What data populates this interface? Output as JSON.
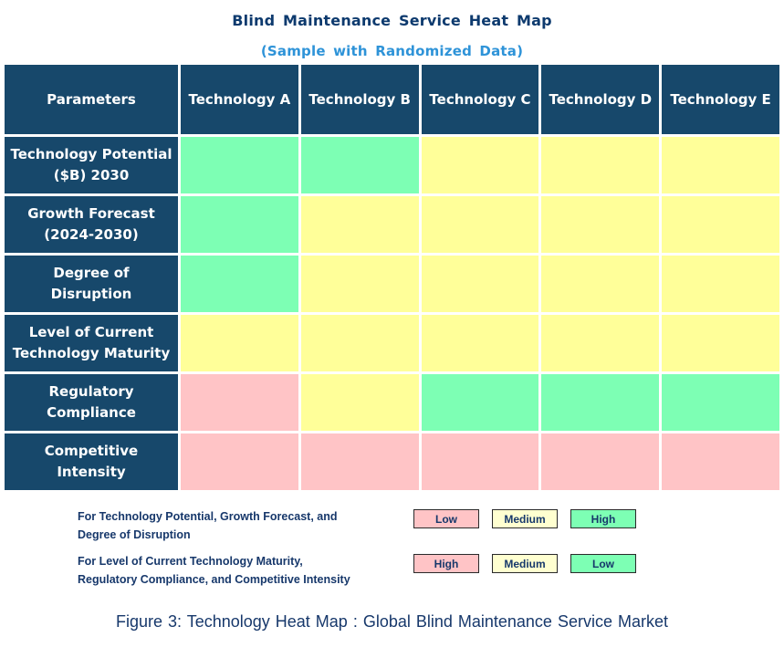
{
  "title": "Blind Maintenance Service Heat Map",
  "subtitle": "(Sample with Randomized Data)",
  "caption": "Figure 3: Technology Heat Map :  Global Blind Maintenance Service Market",
  "colors": {
    "navy": "#17486B",
    "title_navy": "#0D3A6E",
    "subtitle_blue": "#2E93D8",
    "text_navy": "#17386B",
    "green": "#7DFFB4",
    "yellow": "#FFFF99",
    "pink": "#FFC4C6",
    "legend_yellow": "#FFFFD0"
  },
  "table": {
    "columns": [
      "Parameters",
      "Technology A",
      "Technology B",
      "Technology C",
      "Technology D",
      "Technology E"
    ],
    "rows": [
      {
        "label": "Technology Potential\n($B) 2030",
        "cells": [
          "green",
          "green",
          "yellow",
          "yellow",
          "yellow"
        ]
      },
      {
        "label": "Growth Forecast\n(2024-2030)",
        "cells": [
          "green",
          "yellow",
          "yellow",
          "yellow",
          "yellow"
        ]
      },
      {
        "label": "Degree of\nDisruption",
        "cells": [
          "green",
          "yellow",
          "yellow",
          "yellow",
          "yellow"
        ]
      },
      {
        "label": "Level of Current\nTechnology Maturity",
        "cells": [
          "yellow",
          "yellow",
          "yellow",
          "yellow",
          "yellow"
        ]
      },
      {
        "label": "Regulatory\nCompliance",
        "cells": [
          "pink",
          "yellow",
          "green",
          "green",
          "green"
        ]
      },
      {
        "label": "Competitive\nIntensity",
        "cells": [
          "pink",
          "pink",
          "pink",
          "pink",
          "pink"
        ]
      }
    ]
  },
  "legend": [
    {
      "label": "For Technology Potential, Growth Forecast, and\nDegree of Disruption",
      "swatches": [
        {
          "text": "Low",
          "color": "pink"
        },
        {
          "text": "Medium",
          "color": "legend_yellow"
        },
        {
          "text": "High",
          "color": "green"
        }
      ]
    },
    {
      "label": "For Level of Current Technology Maturity,\nRegulatory Compliance, and Competitive Intensity",
      "swatches": [
        {
          "text": "High",
          "color": "pink"
        },
        {
          "text": "Medium",
          "color": "legend_yellow"
        },
        {
          "text": "Low",
          "color": "green"
        }
      ]
    }
  ],
  "chart_data": {
    "type": "heatmap",
    "title": "Blind Maintenance Service Heat Map",
    "subtitle": "(Sample with Randomized Data)",
    "caption": "Figure 3: Technology Heat Map : Global Blind Maintenance Service Market",
    "columns": [
      "Technology A",
      "Technology B",
      "Technology C",
      "Technology D",
      "Technology E"
    ],
    "rows": [
      "Technology Potential ($B) 2030",
      "Growth Forecast (2024-2030)",
      "Degree of Disruption",
      "Level of Current Technology Maturity",
      "Regulatory Compliance",
      "Competitive Intensity"
    ],
    "cell_colors": [
      [
        "green",
        "green",
        "yellow",
        "yellow",
        "yellow"
      ],
      [
        "green",
        "yellow",
        "yellow",
        "yellow",
        "yellow"
      ],
      [
        "green",
        "yellow",
        "yellow",
        "yellow",
        "yellow"
      ],
      [
        "yellow",
        "yellow",
        "yellow",
        "yellow",
        "yellow"
      ],
      [
        "pink",
        "yellow",
        "green",
        "green",
        "green"
      ],
      [
        "pink",
        "pink",
        "pink",
        "pink",
        "pink"
      ]
    ],
    "levels": [
      [
        "High",
        "High",
        "Medium",
        "Medium",
        "Medium"
      ],
      [
        "High",
        "Medium",
        "Medium",
        "Medium",
        "Medium"
      ],
      [
        "High",
        "Medium",
        "Medium",
        "Medium",
        "Medium"
      ],
      [
        "Medium",
        "Medium",
        "Medium",
        "Medium",
        "Medium"
      ],
      [
        "High",
        "Medium",
        "Low",
        "Low",
        "Low"
      ],
      [
        "High",
        "High",
        "High",
        "High",
        "High"
      ]
    ],
    "legend": [
      {
        "applies_to": [
          "Technology Potential ($B) 2030",
          "Growth Forecast (2024-2030)",
          "Degree of Disruption"
        ],
        "mapping": {
          "pink": "Low",
          "yellow": "Medium",
          "green": "High"
        }
      },
      {
        "applies_to": [
          "Level of Current Technology Maturity",
          "Regulatory Compliance",
          "Competitive Intensity"
        ],
        "mapping": {
          "pink": "High",
          "yellow": "Medium",
          "green": "Low"
        }
      }
    ],
    "legend_position": "bottom-left"
  }
}
